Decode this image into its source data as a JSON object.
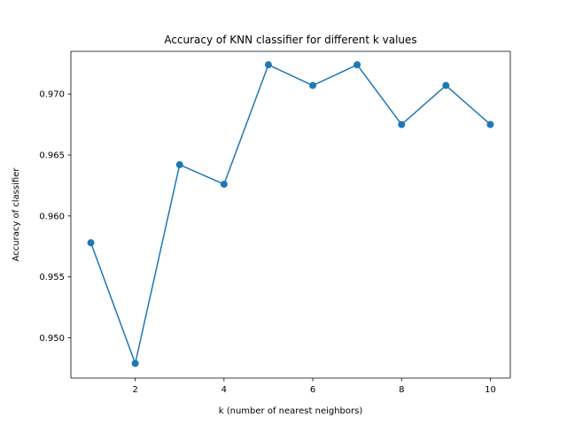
{
  "chart_data": {
    "type": "line",
    "title": "Accuracy of KNN classifier for different k values",
    "xlabel": "k (number of nearest neighbors)",
    "ylabel": "Accuracy of classifier",
    "x_ticks": [
      2,
      4,
      6,
      8,
      10
    ],
    "x_tick_labels": [
      "2",
      "4",
      "6",
      "8",
      "10"
    ],
    "y_ticks": [
      0.95,
      0.955,
      0.96,
      0.965,
      0.97
    ],
    "y_tick_labels": [
      "0.950",
      "0.955",
      "0.960",
      "0.965",
      "0.970"
    ],
    "xlim": [
      0.55,
      10.45
    ],
    "ylim": [
      0.9467,
      0.9735
    ],
    "grid": false,
    "series": [
      {
        "color": "#1f77b4",
        "marker": "circle",
        "x": [
          1,
          2,
          3,
          4,
          5,
          6,
          7,
          8,
          9,
          10
        ],
        "y": [
          0.9578,
          0.9479,
          0.9642,
          0.9626,
          0.9724,
          0.9707,
          0.9724,
          0.9675,
          0.9707,
          0.9675
        ]
      }
    ]
  }
}
